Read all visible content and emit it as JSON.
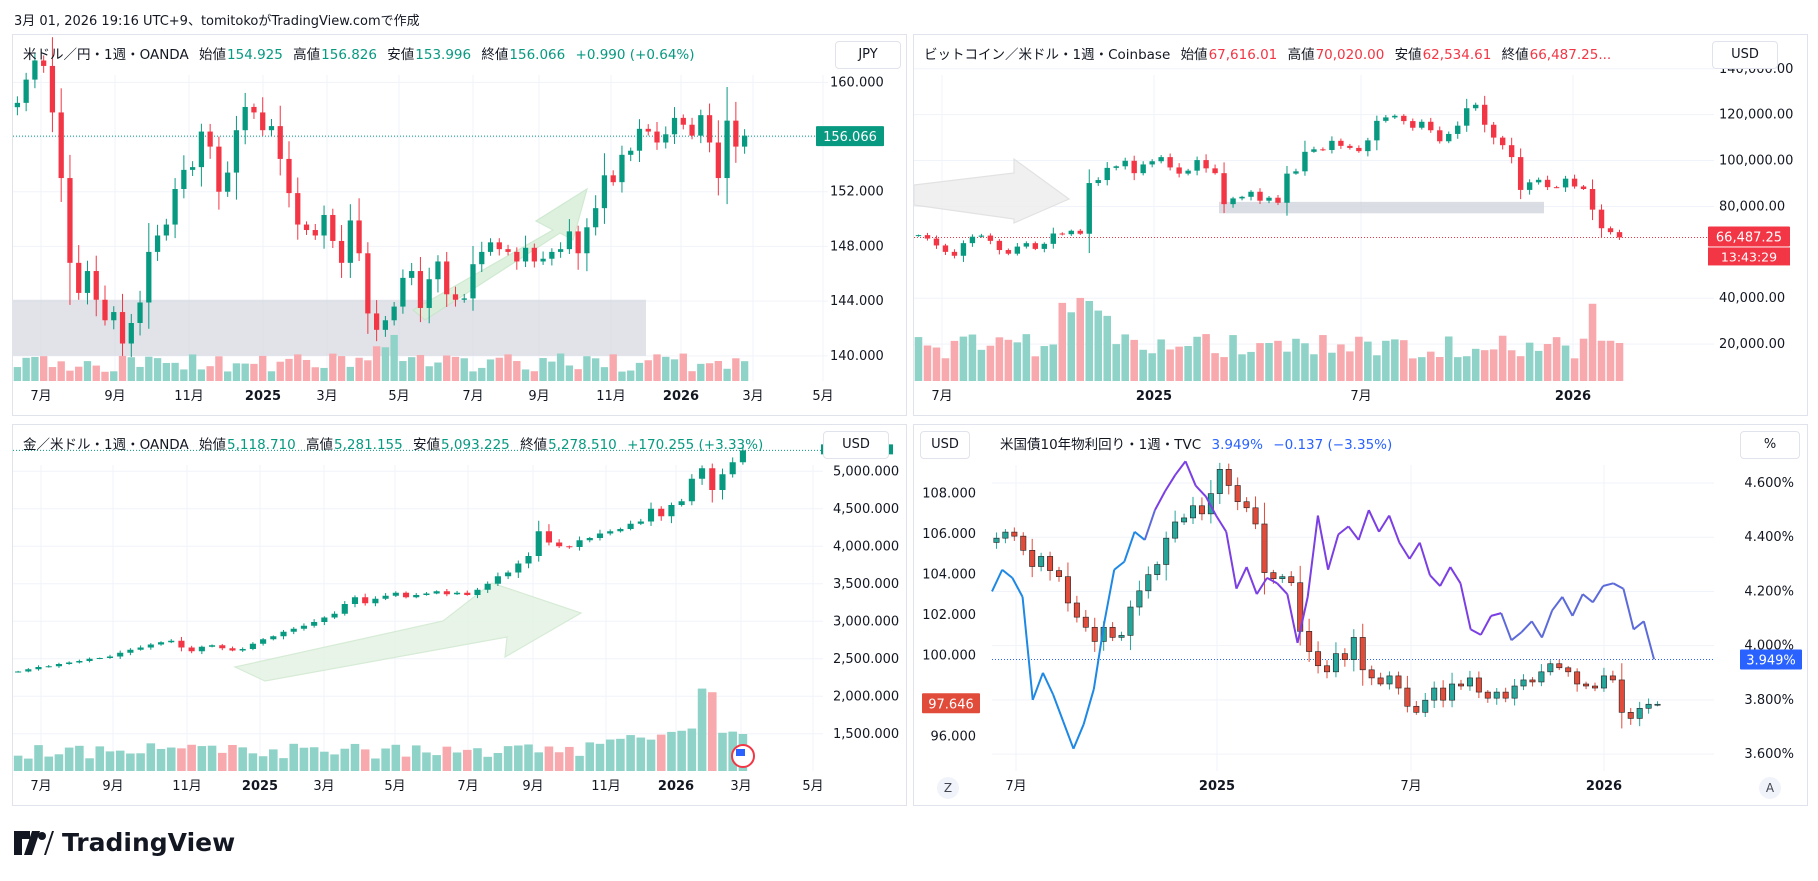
{
  "header": {
    "text": "3月 01, 2026 19:16 UTC+9、tomitokoがTradingView.comで作成"
  },
  "footer": {
    "brand": "TradingView"
  },
  "colors": {
    "up": "#089981",
    "down": "#f23645",
    "upVol": "#8fd3c8",
    "downVol": "#f7a9ad",
    "grid": "#f0f3fa",
    "blue": "#2962ff"
  },
  "panels": {
    "usdjpy": {
      "title": "米ドル／円・1週・OANDA",
      "labels": {
        "o": "始値",
        "h": "高値",
        "l": "安値",
        "c": "終値"
      },
      "values": {
        "o": "154.925",
        "h": "156.826",
        "l": "153.996",
        "c": "156.066",
        "chg": "+0.990 (+0.64%)"
      },
      "currency": "JPY",
      "price_tag": "156.066"
    },
    "btcusd": {
      "title": "ビットコイン／米ドル・1週・Coinbase",
      "labels": {
        "o": "始値",
        "h": "高値",
        "l": "安値",
        "c": "終値"
      },
      "values": {
        "o": "67,616.01",
        "h": "70,020.00",
        "l": "62,534.61",
        "c": "66,487.25..."
      },
      "currency": "USD",
      "price_tag": "66,487.25",
      "countdown": "13:43:29"
    },
    "xauusd": {
      "title": "金／米ドル・1週・OANDA",
      "labels": {
        "o": "始値",
        "h": "高値",
        "l": "安値",
        "c": "終値"
      },
      "values": {
        "o": "5,118.710",
        "h": "5,281.155",
        "l": "5,093.225",
        "c": "5,278.510",
        "chg": "+170.255 (+3.33%)"
      },
      "currency": "USD"
    },
    "us10y": {
      "title": "米国債10年物利回り・1週・TVC",
      "values": {
        "last": "3.949%",
        "chg": "−0.137 (−3.35%)"
      },
      "left_currency": "USD",
      "right_unit": "%",
      "left_tag": "97.646",
      "right_tag": "3.949%",
      "corner_left": "Z",
      "corner_right": "A"
    }
  },
  "chart_data": [
    {
      "type": "candlestick",
      "title": "米ドル／円・1週・OANDA",
      "x_ticks": [
        "7月",
        "9月",
        "11月",
        "2025",
        "3月",
        "5月",
        "7月",
        "9月",
        "11月",
        "2026",
        "3月",
        "5月"
      ],
      "y_ticks": [
        "160.000",
        "156.000",
        "152.000",
        "148.000",
        "144.000",
        "140.000"
      ],
      "ylim": [
        137.5,
        162
      ],
      "close": [
        158.5,
        160.2,
        161.6,
        161.2,
        157.8,
        153.0,
        146.8,
        144.6,
        146.2,
        144.1,
        142.6,
        143.2,
        140.9,
        142.4,
        143.9,
        147.6,
        148.8,
        149.6,
        152.2,
        153.6,
        153.8,
        156.4,
        155.3,
        152.0,
        153.4,
        156.5,
        158.2,
        157.8,
        156.5,
        156.8,
        154.4,
        151.9,
        149.6,
        149.2,
        148.8,
        150.3,
        148.4,
        146.8,
        149.9,
        147.5,
        143.1,
        141.9,
        142.6,
        143.6,
        145.7,
        146.2,
        143.5,
        145.6,
        146.9,
        144.5,
        144.1,
        144.2,
        146.7,
        147.6,
        148.3,
        147.8,
        147.6,
        146.9,
        147.9,
        146.9,
        147.1,
        147.6,
        147.8,
        149.1,
        147.5,
        149.4,
        150.8,
        153.2,
        152.7,
        154.7,
        155.0,
        156.6,
        156.4,
        155.6,
        156.2,
        157.4,
        156.9,
        156.1,
        157.6,
        155.6,
        153.0,
        157.2,
        155.3,
        156.1
      ],
      "volume_note": "weekly volume bars"
    },
    {
      "type": "candlestick",
      "title": "ビットコイン／米ドル・1週・Coinbase",
      "x_ticks": [
        "7月",
        "2025",
        "7月",
        "2026"
      ],
      "y_ticks": [
        "140,000.00",
        "120,000.00",
        "100,000.00",
        "80,000.00",
        "40,000.00",
        "20,000.00"
      ],
      "ylim": [
        0,
        146000
      ],
      "close": [
        67500,
        66000,
        63000,
        60200,
        58500,
        64000,
        66800,
        67300,
        65000,
        61000,
        59400,
        62500,
        64000,
        61500,
        63700,
        68200,
        67900,
        69400,
        68100,
        90200,
        91500,
        96800,
        97500,
        99900,
        94500,
        98300,
        99700,
        101500,
        97000,
        94300,
        95600,
        100200,
        96600,
        94500,
        81000,
        83500,
        84200,
        86400,
        82500,
        83800,
        81600,
        94300,
        95300,
        103800,
        104900,
        104600,
        108600,
        106400,
        105500,
        104100,
        108800,
        117300,
        118800,
        119500,
        117200,
        114300,
        116900,
        113200,
        108400,
        111600,
        115200,
        122800,
        124300,
        115600,
        110000,
        106700,
        101500,
        87200,
        90500,
        91600,
        88400,
        88300,
        92100,
        88700,
        87600,
        78600,
        70500,
        68800,
        66487
      ]
    },
    {
      "type": "candlestick",
      "title": "金／米ドル・1週・OANDA",
      "x_ticks": [
        "7月",
        "9月",
        "11月",
        "2025",
        "3月",
        "5月",
        "7月",
        "9月",
        "11月",
        "2026",
        "3月",
        "5月"
      ],
      "y_ticks": [
        "5,000.000",
        "4,500.000",
        "4,000.000",
        "3,500.000",
        "3,000.000",
        "2,500.000",
        "2,000.000",
        "1,500.000"
      ],
      "ylim": [
        1350,
        5350
      ],
      "close": [
        2330,
        2360,
        2390,
        2400,
        2430,
        2450,
        2470,
        2500,
        2510,
        2530,
        2580,
        2620,
        2650,
        2690,
        2720,
        2740,
        2650,
        2600,
        2660,
        2680,
        2640,
        2610,
        2630,
        2700,
        2760,
        2800,
        2860,
        2900,
        2940,
        2990,
        3050,
        3100,
        3230,
        3320,
        3240,
        3300,
        3340,
        3380,
        3320,
        3350,
        3370,
        3400,
        3360,
        3380,
        3350,
        3420,
        3500,
        3600,
        3650,
        3770,
        3870,
        4200,
        4050,
        4000,
        3990,
        4080,
        4110,
        4170,
        4200,
        4230,
        4300,
        4330,
        4500,
        4400,
        4550,
        4600,
        4900,
        5040,
        4750,
        4960,
        5120,
        5278
      ],
      "volume_note": "weekly volume bars"
    },
    {
      "type": "candlestick+line",
      "title": "米国債10年物利回り・1週・TVC",
      "x_ticks": [
        "7月",
        "2025",
        "7月",
        "2026"
      ],
      "y_left_ticks": [
        "108.000",
        "106.000",
        "104.000",
        "102.000",
        "100.000",
        "96.000"
      ],
      "y_right_ticks": [
        "4.600%",
        "4.400%",
        "4.200%",
        "4.000%",
        "3.800%",
        "3.600%"
      ],
      "ylim_left": [
        94.6,
        110.4
      ],
      "ylim_right": [
        3.56,
        4.74
      ],
      "dxy_close": [
        105.8,
        106.1,
        105.9,
        105.2,
        104.4,
        104.9,
        104.2,
        103.9,
        102.6,
        101.9,
        101.4,
        100.7,
        101.4,
        100.9,
        101.0,
        102.4,
        103.2,
        104.0,
        104.5,
        105.8,
        106.6,
        106.8,
        107.4,
        107.0,
        108.0,
        109.2,
        108.4,
        107.6,
        107.3,
        106.5,
        104.1,
        103.8,
        103.9,
        103.6,
        101.2,
        100.2,
        99.5,
        99.2,
        100.1,
        99.8,
        100.9,
        99.3,
        98.9,
        98.6,
        99.0,
        98.4,
        97.5,
        97.2,
        97.8,
        98.4,
        97.8,
        98.6,
        98.5,
        98.9,
        98.2,
        97.9,
        98.2,
        97.9,
        98.5,
        98.8,
        98.7,
        99.2,
        99.6,
        99.4,
        99.2,
        98.6,
        98.5,
        98.4,
        99.0,
        98.8,
        97.2,
        96.9,
        97.4,
        97.6,
        97.6
      ],
      "yield": [
        4.2,
        4.28,
        4.25,
        4.18,
        3.8,
        3.9,
        3.82,
        3.72,
        3.62,
        3.71,
        3.84,
        4.08,
        4.28,
        4.31,
        4.42,
        4.39,
        4.5,
        4.57,
        4.63,
        4.68,
        4.59,
        4.55,
        4.48,
        4.42,
        4.21,
        4.29,
        4.19,
        4.25,
        4.23,
        4.19,
        4.01,
        4.18,
        4.48,
        4.28,
        4.41,
        4.44,
        4.39,
        4.5,
        4.42,
        4.48,
        4.38,
        4.32,
        4.38,
        4.26,
        4.22,
        4.29,
        4.23,
        4.06,
        4.04,
        4.11,
        4.12,
        4.02,
        4.05,
        4.09,
        4.03,
        4.13,
        4.18,
        4.11,
        4.19,
        4.16,
        4.22,
        4.23,
        4.21,
        4.06,
        4.09,
        3.95
      ]
    }
  ]
}
